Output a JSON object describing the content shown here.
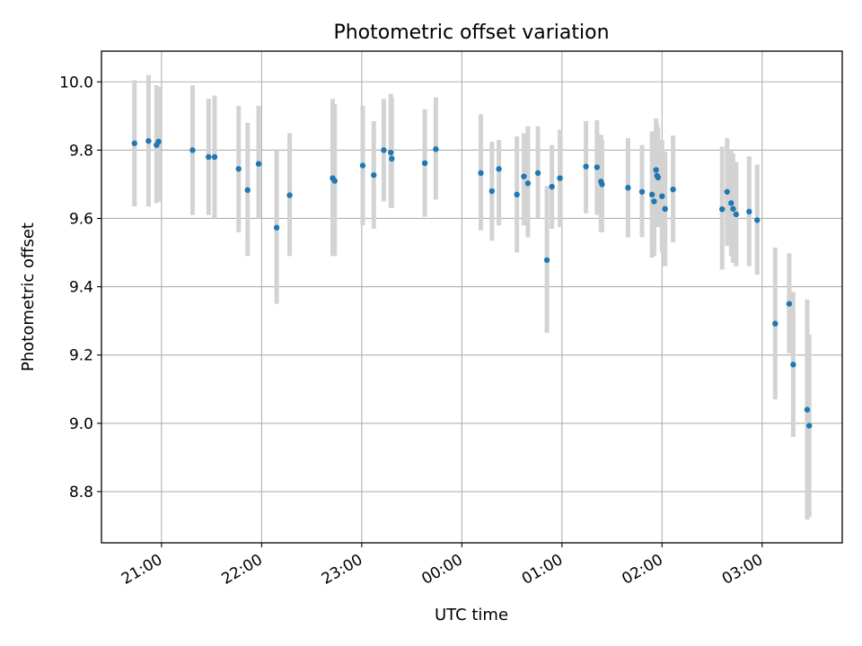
{
  "chart_data": {
    "type": "scatter",
    "title": "Photometric offset variation",
    "xlabel": "UTC time",
    "ylabel": "Photometric offset",
    "x_unit": "hours since 00:00 UTC (negative = previous evening)",
    "xlim": [
      -3.6,
      3.8
    ],
    "ylim": [
      8.65,
      10.09
    ],
    "grid": true,
    "x_ticks": [
      {
        "value": -3,
        "label": "21:00"
      },
      {
        "value": -2,
        "label": "22:00"
      },
      {
        "value": -1,
        "label": "23:00"
      },
      {
        "value": 0,
        "label": "00:00"
      },
      {
        "value": 1,
        "label": "01:00"
      },
      {
        "value": 2,
        "label": "02:00"
      },
      {
        "value": 3,
        "label": "03:00"
      }
    ],
    "y_ticks": [
      {
        "value": 8.8,
        "label": "8.8"
      },
      {
        "value": 9.0,
        "label": "9.0"
      },
      {
        "value": 9.2,
        "label": "9.2"
      },
      {
        "value": 9.4,
        "label": "9.4"
      },
      {
        "value": 9.6,
        "label": "9.6"
      },
      {
        "value": 9.8,
        "label": "9.8"
      },
      {
        "value": 10.0,
        "label": "10.0"
      }
    ],
    "colors": {
      "point": "#1f77b4",
      "errorbar": "#d3d3d3",
      "grid": "#b0b0b0"
    },
    "points": [
      {
        "x": -3.27,
        "y": 9.82,
        "ylo": 9.635,
        "yhi": 10.005
      },
      {
        "x": -3.13,
        "y": 9.827,
        "ylo": 9.635,
        "yhi": 10.02
      },
      {
        "x": -3.05,
        "y": 9.815,
        "ylo": 9.645,
        "yhi": 9.99
      },
      {
        "x": -3.03,
        "y": 9.825,
        "ylo": 9.65,
        "yhi": 9.985
      },
      {
        "x": -2.69,
        "y": 9.8,
        "ylo": 9.61,
        "yhi": 9.99
      },
      {
        "x": -2.53,
        "y": 9.78,
        "ylo": 9.61,
        "yhi": 9.95
      },
      {
        "x": -2.47,
        "y": 9.78,
        "ylo": 9.6,
        "yhi": 9.96
      },
      {
        "x": -2.23,
        "y": 9.745,
        "ylo": 9.56,
        "yhi": 9.93
      },
      {
        "x": -2.14,
        "y": 9.683,
        "ylo": 9.49,
        "yhi": 9.88
      },
      {
        "x": -2.03,
        "y": 9.76,
        "ylo": 9.6,
        "yhi": 9.93
      },
      {
        "x": -1.85,
        "y": 9.573,
        "ylo": 9.35,
        "yhi": 9.8
      },
      {
        "x": -1.72,
        "y": 9.668,
        "ylo": 9.49,
        "yhi": 9.85
      },
      {
        "x": -1.29,
        "y": 9.718,
        "ylo": 9.49,
        "yhi": 9.95
      },
      {
        "x": -1.27,
        "y": 9.71,
        "ylo": 9.49,
        "yhi": 9.935
      },
      {
        "x": -0.99,
        "y": 9.755,
        "ylo": 9.58,
        "yhi": 9.93
      },
      {
        "x": -0.88,
        "y": 9.727,
        "ylo": 9.57,
        "yhi": 9.885
      },
      {
        "x": -0.78,
        "y": 9.8,
        "ylo": 9.65,
        "yhi": 9.95
      },
      {
        "x": -0.71,
        "y": 9.793,
        "ylo": 9.63,
        "yhi": 9.965
      },
      {
        "x": -0.7,
        "y": 9.775,
        "ylo": 9.63,
        "yhi": 9.955
      },
      {
        "x": -0.37,
        "y": 9.762,
        "ylo": 9.605,
        "yhi": 9.92
      },
      {
        "x": -0.26,
        "y": 9.803,
        "ylo": 9.655,
        "yhi": 9.955
      },
      {
        "x": 0.19,
        "y": 9.733,
        "ylo": 9.565,
        "yhi": 9.905
      },
      {
        "x": 0.3,
        "y": 9.68,
        "ylo": 9.535,
        "yhi": 9.825
      },
      {
        "x": 0.37,
        "y": 9.745,
        "ylo": 9.58,
        "yhi": 9.83
      },
      {
        "x": 0.55,
        "y": 9.67,
        "ylo": 9.5,
        "yhi": 9.84
      },
      {
        "x": 0.62,
        "y": 9.723,
        "ylo": 9.58,
        "yhi": 9.85
      },
      {
        "x": 0.66,
        "y": 9.703,
        "ylo": 9.545,
        "yhi": 9.87
      },
      {
        "x": 0.76,
        "y": 9.733,
        "ylo": 9.6,
        "yhi": 9.87
      },
      {
        "x": 0.85,
        "y": 9.478,
        "ylo": 9.265,
        "yhi": 9.695
      },
      {
        "x": 0.9,
        "y": 9.693,
        "ylo": 9.57,
        "yhi": 9.815
      },
      {
        "x": 0.98,
        "y": 9.718,
        "ylo": 9.575,
        "yhi": 9.86
      },
      {
        "x": 1.24,
        "y": 9.752,
        "ylo": 9.615,
        "yhi": 9.885
      },
      {
        "x": 1.35,
        "y": 9.75,
        "ylo": 9.61,
        "yhi": 9.888
      },
      {
        "x": 1.39,
        "y": 9.708,
        "ylo": 9.56,
        "yhi": 9.845
      },
      {
        "x": 1.4,
        "y": 9.7,
        "ylo": 9.56,
        "yhi": 9.83
      },
      {
        "x": 1.66,
        "y": 9.69,
        "ylo": 9.545,
        "yhi": 9.835
      },
      {
        "x": 1.8,
        "y": 9.678,
        "ylo": 9.545,
        "yhi": 9.815
      },
      {
        "x": 1.9,
        "y": 9.67,
        "ylo": 9.485,
        "yhi": 9.855
      },
      {
        "x": 1.92,
        "y": 9.65,
        "ylo": 9.49,
        "yhi": 9.84
      },
      {
        "x": 1.94,
        "y": 9.742,
        "ylo": 9.59,
        "yhi": 9.893
      },
      {
        "x": 1.95,
        "y": 9.725,
        "ylo": 9.575,
        "yhi": 9.877
      },
      {
        "x": 1.96,
        "y": 9.72,
        "ylo": 9.575,
        "yhi": 9.865
      },
      {
        "x": 2.0,
        "y": 9.665,
        "ylo": 9.5,
        "yhi": 9.83
      },
      {
        "x": 2.03,
        "y": 9.628,
        "ylo": 9.46,
        "yhi": 9.795
      },
      {
        "x": 2.11,
        "y": 9.685,
        "ylo": 9.53,
        "yhi": 9.843
      },
      {
        "x": 2.6,
        "y": 9.627,
        "ylo": 9.45,
        "yhi": 9.81
      },
      {
        "x": 2.65,
        "y": 9.678,
        "ylo": 9.52,
        "yhi": 9.835
      },
      {
        "x": 2.69,
        "y": 9.645,
        "ylo": 9.49,
        "yhi": 9.8
      },
      {
        "x": 2.71,
        "y": 9.628,
        "ylo": 9.47,
        "yhi": 9.79
      },
      {
        "x": 2.74,
        "y": 9.612,
        "ylo": 9.46,
        "yhi": 9.765
      },
      {
        "x": 2.87,
        "y": 9.62,
        "ylo": 9.46,
        "yhi": 9.782
      },
      {
        "x": 2.95,
        "y": 9.595,
        "ylo": 9.435,
        "yhi": 9.758
      },
      {
        "x": 3.13,
        "y": 9.292,
        "ylo": 9.07,
        "yhi": 9.515
      },
      {
        "x": 3.27,
        "y": 9.35,
        "ylo": 9.205,
        "yhi": 9.498
      },
      {
        "x": 3.31,
        "y": 9.172,
        "ylo": 8.96,
        "yhi": 9.385
      },
      {
        "x": 3.45,
        "y": 9.04,
        "ylo": 8.718,
        "yhi": 9.362
      },
      {
        "x": 3.47,
        "y": 8.993,
        "ylo": 8.725,
        "yhi": 9.26
      }
    ]
  }
}
